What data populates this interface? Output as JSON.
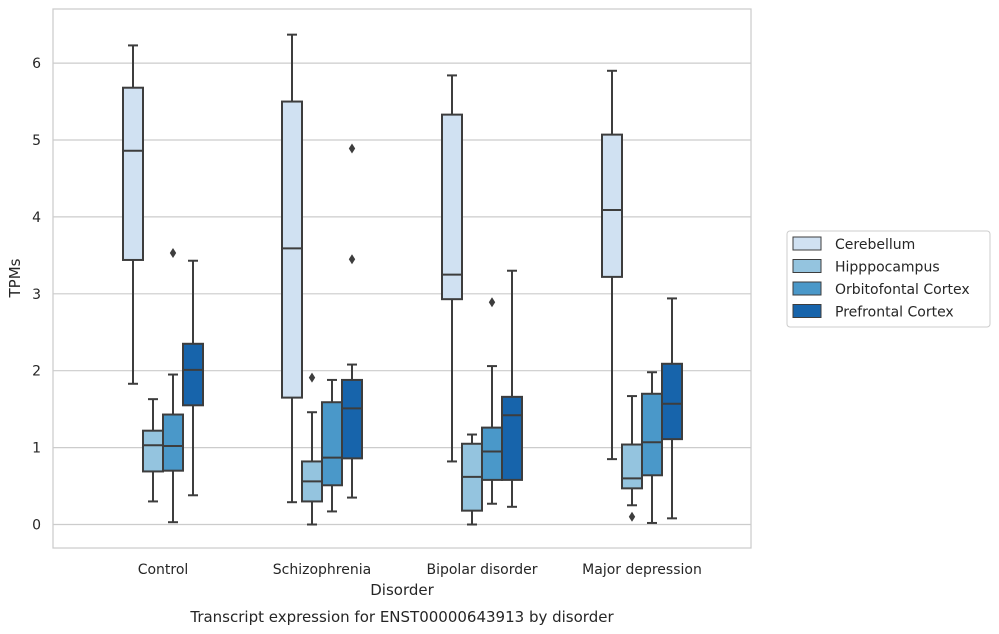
{
  "chart_data": {
    "type": "box",
    "xlabel": "Disorder",
    "ylabel": "TPMs",
    "caption": "Transcript expression for ENST00000643913 by disorder",
    "ylim": [
      -0.3,
      6.7
    ],
    "yticks": [
      0,
      1,
      2,
      3,
      4,
      5,
      6
    ],
    "grid": true,
    "legend_position": "right",
    "categories": [
      "Control",
      "Schizophrenia",
      "Bipolar disorder",
      "Major depression"
    ],
    "series": [
      {
        "name": "Cerebellum",
        "color": "#d0e1f2",
        "boxes": [
          {
            "whislo": 1.83,
            "q1": 3.44,
            "med": 4.86,
            "q3": 5.68,
            "whishi": 6.23,
            "fliers": []
          },
          {
            "whislo": 0.29,
            "q1": 1.65,
            "med": 3.59,
            "q3": 5.5,
            "whishi": 6.37,
            "fliers": []
          },
          {
            "whislo": 0.82,
            "q1": 2.93,
            "med": 3.25,
            "q3": 5.33,
            "whishi": 5.84,
            "fliers": []
          },
          {
            "whislo": 0.85,
            "q1": 3.22,
            "med": 4.09,
            "q3": 5.07,
            "whishi": 5.9,
            "fliers": []
          }
        ]
      },
      {
        "name": "Hipppocampus",
        "color": "#94c4df",
        "boxes": [
          {
            "whislo": 0.3,
            "q1": 0.69,
            "med": 1.03,
            "q3": 1.22,
            "whishi": 1.63,
            "fliers": []
          },
          {
            "whislo": 0.0,
            "q1": 0.3,
            "med": 0.56,
            "q3": 0.82,
            "whishi": 1.46,
            "fliers": [
              1.91
            ]
          },
          {
            "whislo": 0.0,
            "q1": 0.18,
            "med": 0.62,
            "q3": 1.05,
            "whishi": 1.17,
            "fliers": []
          },
          {
            "whislo": 0.25,
            "q1": 0.47,
            "med": 0.6,
            "q3": 1.04,
            "whishi": 1.67,
            "fliers": [
              0.1
            ]
          }
        ]
      },
      {
        "name": "Orbitofontal Cortex",
        "color": "#4a98c9",
        "boxes": [
          {
            "whislo": 0.03,
            "q1": 0.7,
            "med": 1.02,
            "q3": 1.43,
            "whishi": 1.95,
            "fliers": [
              3.53
            ]
          },
          {
            "whislo": 0.17,
            "q1": 0.51,
            "med": 0.87,
            "q3": 1.59,
            "whishi": 1.88,
            "fliers": []
          },
          {
            "whislo": 0.27,
            "q1": 0.58,
            "med": 0.95,
            "q3": 1.26,
            "whishi": 2.06,
            "fliers": [
              2.89
            ]
          },
          {
            "whislo": 0.02,
            "q1": 0.64,
            "med": 1.07,
            "q3": 1.7,
            "whishi": 1.98,
            "fliers": []
          }
        ]
      },
      {
        "name": "Prefrontal Cortex",
        "color": "#1764ab",
        "boxes": [
          {
            "whislo": 0.38,
            "q1": 1.55,
            "med": 2.01,
            "q3": 2.35,
            "whishi": 3.43,
            "fliers": []
          },
          {
            "whislo": 0.35,
            "q1": 0.86,
            "med": 1.51,
            "q3": 1.88,
            "whishi": 2.08,
            "fliers": [
              3.45,
              4.89
            ]
          },
          {
            "whislo": 0.23,
            "q1": 0.58,
            "med": 1.42,
            "q3": 1.66,
            "whishi": 3.3,
            "fliers": []
          },
          {
            "whislo": 0.08,
            "q1": 1.11,
            "med": 1.57,
            "q3": 2.09,
            "whishi": 2.94,
            "fliers": []
          }
        ]
      }
    ]
  }
}
